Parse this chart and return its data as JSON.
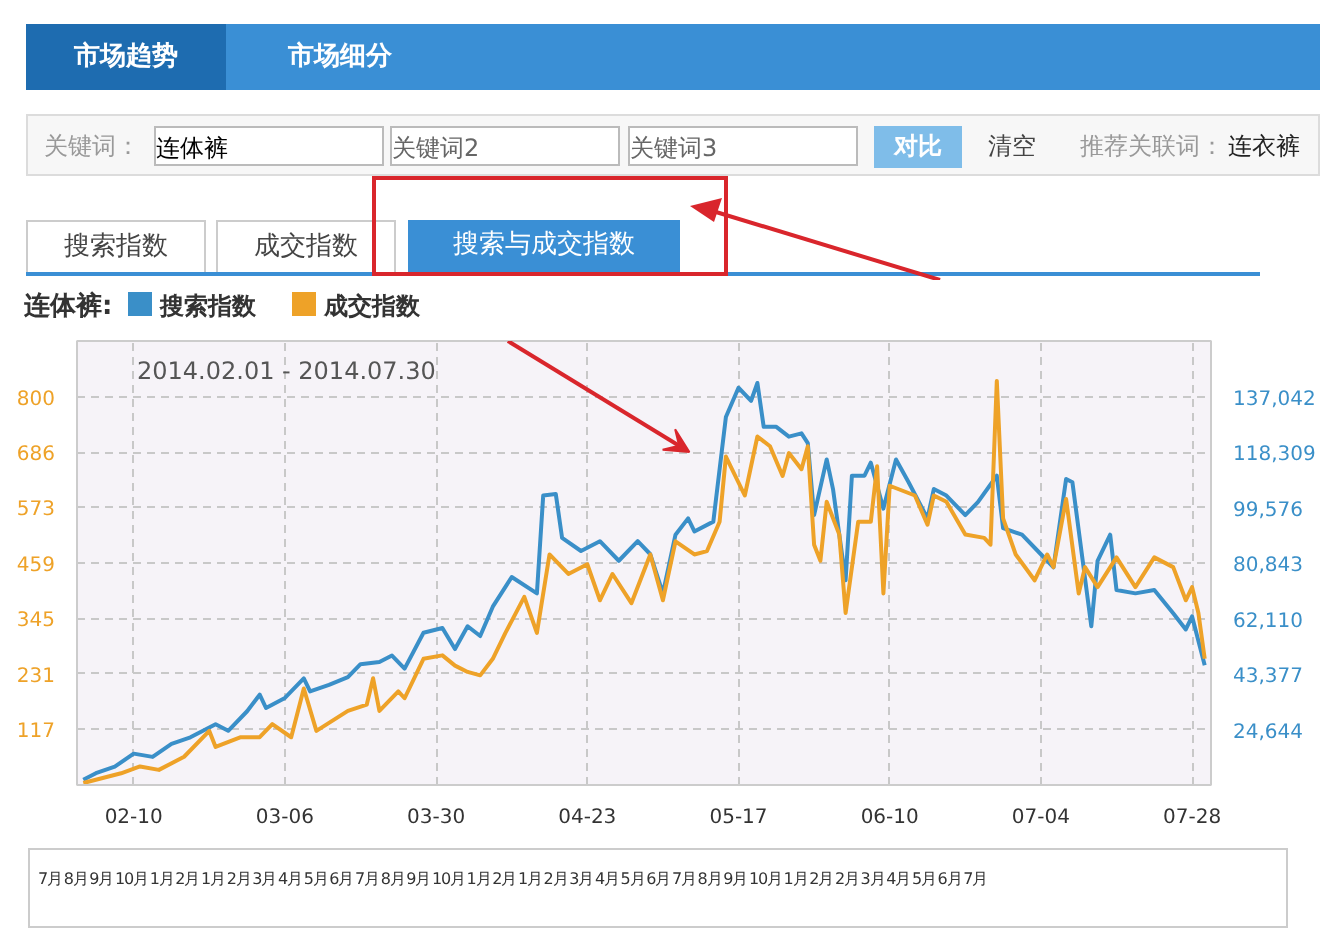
{
  "chart_data": {
    "type": "line",
    "title": "连体裤:",
    "legend": "top left",
    "grid": true,
    "xlim": [
      "2014-02-01",
      "2014-07-31"
    ],
    "xticks": [
      {
        "value": "2014-02-10",
        "label": "02-10"
      },
      {
        "value": "2014-03-06",
        "label": "03-06"
      },
      {
        "value": "2014-03-30",
        "label": "03-30"
      },
      {
        "value": "2014-04-23",
        "label": "04-23"
      },
      {
        "value": "2014-05-17",
        "label": "05-17"
      },
      {
        "value": "2014-06-10",
        "label": "06-10"
      },
      {
        "value": "2014-07-04",
        "label": "07-04"
      },
      {
        "value": "2014-07-28",
        "label": "07-28"
      }
    ],
    "ylim": [
      3,
      914
    ],
    "yticks": [
      117,
      231,
      345,
      459,
      573,
      686,
      800
    ],
    "y2lim": [
      5911,
      155775
    ],
    "y2ticks": [
      {
        "value": 24644,
        "label": "24,644"
      },
      {
        "value": 43377,
        "label": "43,377"
      },
      {
        "value": 62110,
        "label": "62,110"
      },
      {
        "value": 80843,
        "label": "80,843"
      },
      {
        "value": 99576,
        "label": "99,576"
      },
      {
        "value": 118309,
        "label": "118,309"
      },
      {
        "value": 137042,
        "label": "137,042"
      }
    ],
    "annotations": [
      "2014.02.01 - 2014.07.30",
      "市场趋势",
      "市场细分",
      "关键词：",
      "连体裤",
      "关键词2",
      "关键词3",
      "对比",
      "清空",
      "推荐关联词：",
      "连衣裤",
      "搜索指数",
      "成交指数",
      "搜索与成交指数",
      "7月 8月 9月 10月 1月 2月 1月 2月 3月 4月 5月 6月 7月 8月 9月 10月 1月 2月 1月 2月 3月 4月 5月 6月 7月 8月 9月 10月 1月 2月 2月 3月 4月 5月 6月 7月"
    ],
    "series": [
      {
        "name": "搜索指数",
        "color": "#3a8fc8",
        "axis": "y2",
        "x": [
          "2014-02-02",
          "2014-02-04",
          "2014-02-07",
          "2014-02-10",
          "2014-02-13",
          "2014-02-16",
          "2014-02-19",
          "2014-02-23",
          "2014-02-25",
          "2014-02-28",
          "2014-03-02",
          "2014-03-03",
          "2014-03-06",
          "2014-03-09",
          "2014-03-10",
          "2014-03-13",
          "2014-03-16",
          "2014-03-18",
          "2014-03-21",
          "2014-03-23",
          "2014-03-25",
          "2014-03-28",
          "2014-03-31",
          "2014-04-02",
          "2014-04-04",
          "2014-04-06",
          "2014-04-08",
          "2014-04-11",
          "2014-04-15",
          "2014-04-16",
          "2014-04-18",
          "2014-04-19",
          "2014-04-22",
          "2014-04-25",
          "2014-04-28",
          "2014-05-01",
          "2014-05-03",
          "2014-05-05",
          "2014-05-07",
          "2014-05-09",
          "2014-05-10",
          "2014-05-13",
          "2014-05-15",
          "2014-05-17",
          "2014-05-19",
          "2014-05-20",
          "2014-05-21",
          "2014-05-23",
          "2014-05-25",
          "2014-05-27",
          "2014-05-28",
          "2014-05-29",
          "2014-05-31",
          "2014-06-01",
          "2014-06-03",
          "2014-06-04",
          "2014-06-06",
          "2014-06-07",
          "2014-06-09",
          "2014-06-11",
          "2014-06-13",
          "2014-06-16",
          "2014-06-17",
          "2014-06-19",
          "2014-06-22",
          "2014-06-24",
          "2014-06-27",
          "2014-06-28",
          "2014-07-01",
          "2014-07-04",
          "2014-07-06",
          "2014-07-08",
          "2014-07-09",
          "2014-07-12",
          "2014-07-13",
          "2014-07-15",
          "2014-07-16",
          "2014-07-19",
          "2014-07-22",
          "2014-07-25",
          "2014-07-27",
          "2014-07-28",
          "2014-07-30"
        ],
        "values": [
          7700,
          9900,
          12100,
          16500,
          15400,
          19800,
          22000,
          26400,
          24200,
          30800,
          36400,
          31900,
          35300,
          41900,
          37500,
          39700,
          42300,
          46700,
          47400,
          49600,
          45200,
          57300,
          58900,
          51800,
          59500,
          56200,
          66100,
          76100,
          70600,
          103600,
          104100,
          89300,
          84900,
          88200,
          81600,
          88200,
          83800,
          70600,
          90400,
          95900,
          91500,
          94800,
          130100,
          140000,
          135600,
          141600,
          126800,
          126800,
          123500,
          124600,
          121300,
          97000,
          115800,
          105800,
          75000,
          110300,
          110300,
          114700,
          99200,
          115800,
          108100,
          95900,
          105800,
          103600,
          97000,
          101400,
          110300,
          92600,
          90400,
          83800,
          79400,
          109200,
          108100,
          59500,
          81600,
          90400,
          71700,
          70600,
          71700,
          63900,
          58400,
          62800,
          46300
        ]
      },
      {
        "name": "成交指数",
        "color": "#eea228",
        "x": [
          "2014-02-02",
          "2014-02-08",
          "2014-02-11",
          "2014-02-14",
          "2014-02-18",
          "2014-02-22",
          "2014-02-23",
          "2014-02-27",
          "2014-03-02",
          "2014-03-04",
          "2014-03-07",
          "2014-03-09",
          "2014-03-11",
          "2014-03-16",
          "2014-03-19",
          "2014-03-20",
          "2014-03-21",
          "2014-03-24",
          "2014-03-25",
          "2014-03-28",
          "2014-03-31",
          "2014-04-02",
          "2014-04-04",
          "2014-04-06",
          "2014-04-08",
          "2014-04-10",
          "2014-04-13",
          "2014-04-15",
          "2014-04-17",
          "2014-04-20",
          "2014-04-23",
          "2014-04-25",
          "2014-04-27",
          "2014-04-30",
          "2014-05-03",
          "2014-05-05",
          "2014-05-07",
          "2014-05-10",
          "2014-05-12",
          "2014-05-14",
          "2014-05-15",
          "2014-05-18",
          "2014-05-20",
          "2014-05-22",
          "2014-05-24",
          "2014-05-25",
          "2014-05-27",
          "2014-05-28",
          "2014-05-29",
          "2014-05-30",
          "2014-05-31",
          "2014-06-02",
          "2014-06-03",
          "2014-06-05",
          "2014-06-07",
          "2014-06-08",
          "2014-06-09",
          "2014-06-10",
          "2014-06-14",
          "2014-06-16",
          "2014-06-17",
          "2014-06-19",
          "2014-06-22",
          "2014-06-25",
          "2014-06-26",
          "2014-06-27",
          "2014-06-28",
          "2014-06-30",
          "2014-07-03",
          "2014-07-05",
          "2014-07-06",
          "2014-07-08",
          "2014-07-10",
          "2014-07-11",
          "2014-07-13",
          "2014-07-16",
          "2014-07-19",
          "2014-07-22",
          "2014-07-25",
          "2014-07-27",
          "2014-07-28",
          "2014-07-29",
          "2014-07-30"
        ],
        "values": [
          7,
          27,
          41,
          34,
          61,
          114,
          81,
          101,
          101,
          128,
          101,
          201,
          114,
          155,
          168,
          222,
          155,
          195,
          181,
          262,
          269,
          248,
          235,
          228,
          262,
          315,
          389,
          315,
          476,
          436,
          456,
          382,
          436,
          376,
          476,
          382,
          503,
          476,
          483,
          543,
          677,
          597,
          718,
          698,
          637,
          684,
          651,
          698,
          496,
          463,
          584,
          517,
          356,
          543,
          543,
          657,
          396,
          617,
          597,
          537,
          597,
          584,
          517,
          510,
          496,
          832,
          550,
          476,
          423,
          476,
          450,
          590,
          396,
          450,
          409,
          470,
          409,
          470,
          450,
          382,
          409,
          356,
          262
        ]
      }
    ]
  }
}
